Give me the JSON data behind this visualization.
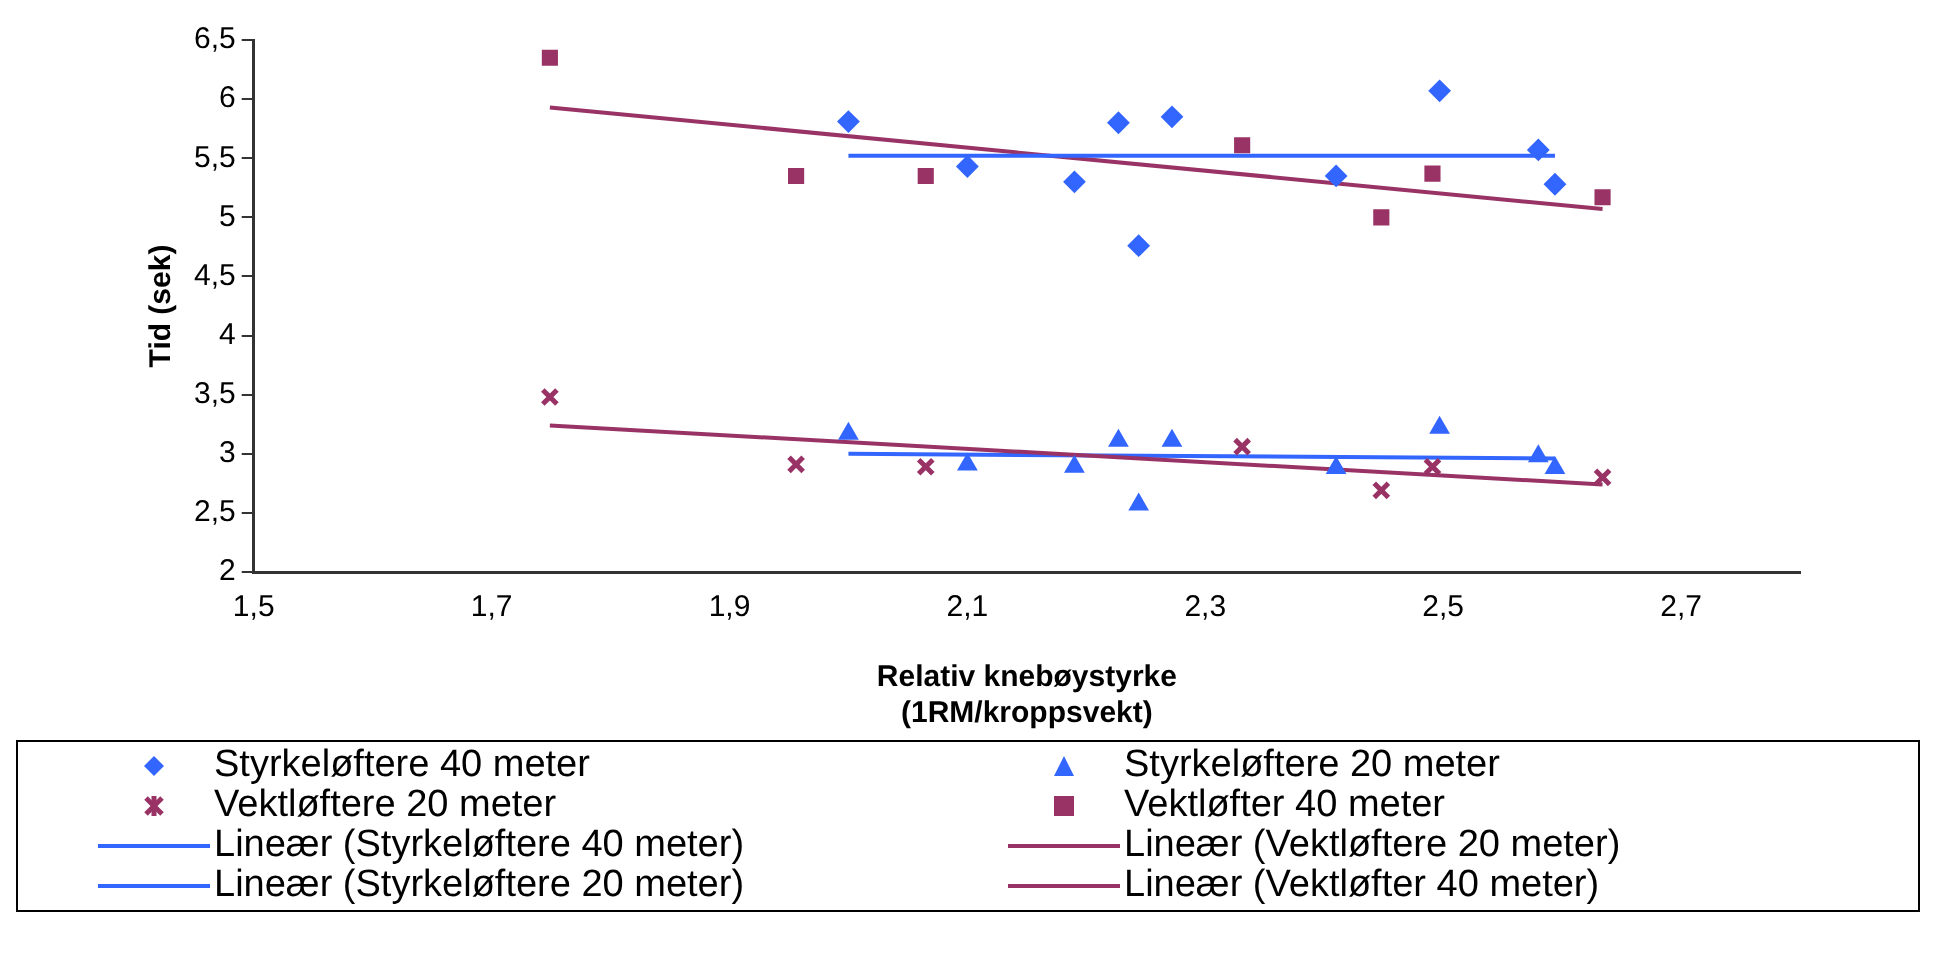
{
  "chart_data": {
    "type": "scatter",
    "xlabel": "Relativ knebøystyrke\n(1RM/kroppsvekt)",
    "ylabel": "Tid (sek)",
    "xlim": [
      1.5,
      2.8
    ],
    "xticks": [
      {
        "value": 1.5,
        "label": "1,5"
      },
      {
        "value": 1.7,
        "label": "1,7"
      },
      {
        "value": 1.9,
        "label": "1,9"
      },
      {
        "value": 2.1,
        "label": "2,1"
      },
      {
        "value": 2.3,
        "label": "2,3"
      },
      {
        "value": 2.5,
        "label": "2,5"
      },
      {
        "value": 2.7,
        "label": "2,7"
      }
    ],
    "ylim": [
      2,
      6.5
    ],
    "yticks": [
      2,
      {
        "value": 2.5,
        "label": "2,5"
      },
      3,
      {
        "value": 3.5,
        "label": "3,5"
      },
      4,
      {
        "value": 4.5,
        "label": "4,5"
      },
      5,
      {
        "value": 5.5,
        "label": "5,5"
      },
      6,
      {
        "value": 6.5,
        "label": "6,5"
      }
    ],
    "grid": false,
    "legend": "bottom",
    "series": [
      {
        "name": "Styrkeløftere 40 meter",
        "marker": "diamond",
        "color": "#3366ff",
        "x": [
          2.0,
          2.1,
          2.19,
          2.227,
          2.244,
          2.272,
          2.41,
          2.497,
          2.58,
          2.594
        ],
        "values": [
          5.81,
          5.43,
          5.3,
          5.8,
          4.76,
          5.85,
          5.35,
          6.07,
          5.57,
          5.28
        ]
      },
      {
        "name": "Styrkeløftere 20 meter",
        "marker": "triangle",
        "color": "#3366ff",
        "x": [
          2.0,
          2.1,
          2.19,
          2.227,
          2.244,
          2.272,
          2.41,
          2.497,
          2.58,
          2.594
        ],
        "values": [
          3.17,
          2.91,
          2.89,
          3.11,
          2.57,
          3.11,
          2.88,
          3.22,
          2.98,
          2.88
        ]
      },
      {
        "name": "Vektløftere 20 meter",
        "marker": "cross",
        "color": "#993366",
        "x": [
          1.749,
          1.956,
          2.065,
          2.331,
          2.448,
          2.491,
          2.634
        ],
        "values": [
          3.48,
          2.91,
          2.89,
          3.06,
          2.69,
          2.89,
          2.8
        ]
      },
      {
        "name": "Vektløfter 40 meter",
        "marker": "square",
        "color": "#993366",
        "x": [
          1.749,
          1.956,
          2.065,
          2.331,
          2.448,
          2.491,
          2.634
        ],
        "values": [
          6.35,
          5.35,
          5.35,
          5.61,
          5.0,
          5.37,
          5.17
        ]
      },
      {
        "name": "Lineær (Styrkeløftere 40 meter)",
        "type": "line",
        "marker": "none",
        "color": "#3366ff",
        "x": [
          2.0,
          2.594
        ],
        "values": [
          5.52,
          5.52
        ]
      },
      {
        "name": "Lineær (Vektløftere 20 meter)",
        "type": "line",
        "marker": "none",
        "color": "#993366",
        "x": [
          1.749,
          2.634
        ],
        "values": [
          3.24,
          2.74
        ]
      },
      {
        "name": "Lineær (Styrkeløftere 20 meter)",
        "type": "line",
        "marker": "none",
        "color": "#3366ff",
        "x": [
          2.0,
          2.594
        ],
        "values": [
          3.0,
          2.96
        ]
      },
      {
        "name": "Lineær (Vektløfter 40 meter)",
        "type": "line",
        "marker": "none",
        "color": "#993366",
        "x": [
          1.749,
          2.634
        ],
        "values": [
          5.93,
          5.07
        ]
      }
    ]
  }
}
